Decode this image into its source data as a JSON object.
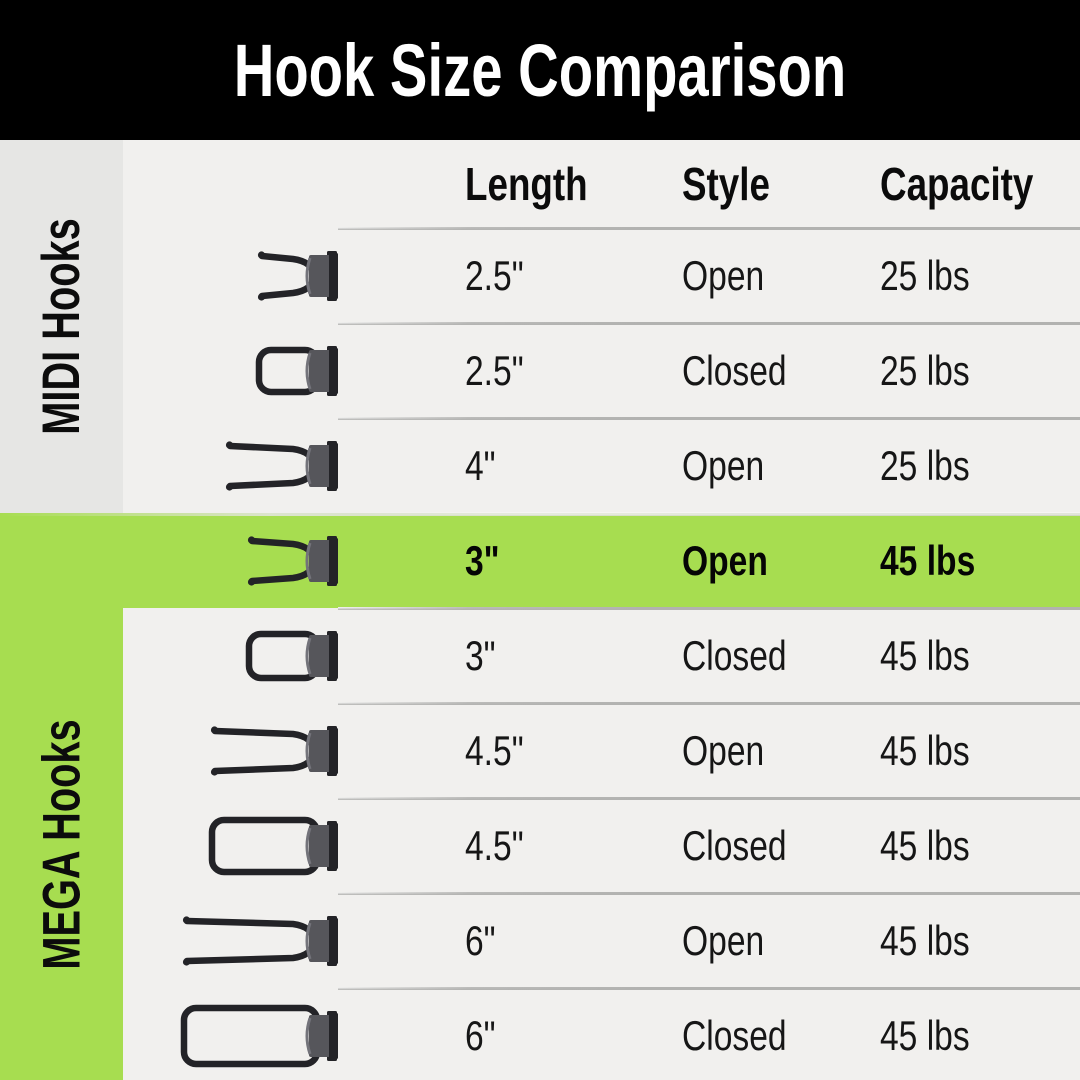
{
  "title": "Hook Size Comparison",
  "sidebar": {
    "midi_label": "MIDI Hooks",
    "mega_label": "MEGA Hooks"
  },
  "chart_data": {
    "type": "table",
    "title": "Hook Size Comparison",
    "columns": [
      "Length",
      "Style",
      "Capacity"
    ],
    "row_groups": [
      "MIDI Hooks",
      "MEGA Hooks"
    ],
    "rows": [
      {
        "group": "MIDI",
        "length": "2.5\"",
        "style": "Open",
        "capacity": "25 lbs",
        "highlighted": false,
        "icon": "hook-open-icon"
      },
      {
        "group": "MIDI",
        "length": "2.5\"",
        "style": "Closed",
        "capacity": "25 lbs",
        "highlighted": false,
        "icon": "hook-closed-icon"
      },
      {
        "group": "MIDI",
        "length": "4\"",
        "style": "Open",
        "capacity": "25 lbs",
        "highlighted": false,
        "icon": "hook-open-icon"
      },
      {
        "group": "MEGA",
        "length": "3\"",
        "style": "Open",
        "capacity": "45 lbs",
        "highlighted": true,
        "icon": "hook-open-icon"
      },
      {
        "group": "MEGA",
        "length": "3\"",
        "style": "Closed",
        "capacity": "45 lbs",
        "highlighted": false,
        "icon": "hook-closed-icon"
      },
      {
        "group": "MEGA",
        "length": "4.5\"",
        "style": "Open",
        "capacity": "45 lbs",
        "highlighted": false,
        "icon": "hook-open-icon"
      },
      {
        "group": "MEGA",
        "length": "4.5\"",
        "style": "Closed",
        "capacity": "45 lbs",
        "highlighted": false,
        "icon": "hook-closed-icon"
      },
      {
        "group": "MEGA",
        "length": "6\"",
        "style": "Open",
        "capacity": "45 lbs",
        "highlighted": false,
        "icon": "hook-open-icon"
      },
      {
        "group": "MEGA",
        "length": "6\"",
        "style": "Closed",
        "capacity": "45 lbs",
        "highlighted": false,
        "icon": "hook-closed-icon"
      }
    ]
  },
  "colors": {
    "header_bg": "#000000",
    "title_text": "#ffffff",
    "table_bg": "#f1f0ee",
    "sidebar_gray": "#e6e6e4",
    "accent_green": "#a7dd50",
    "divider_gray": "#b2b2b0",
    "text_dark": "#161616",
    "hook_dark": "#232327",
    "hook_gray": "#56565b",
    "hook_face": "#73737a"
  }
}
